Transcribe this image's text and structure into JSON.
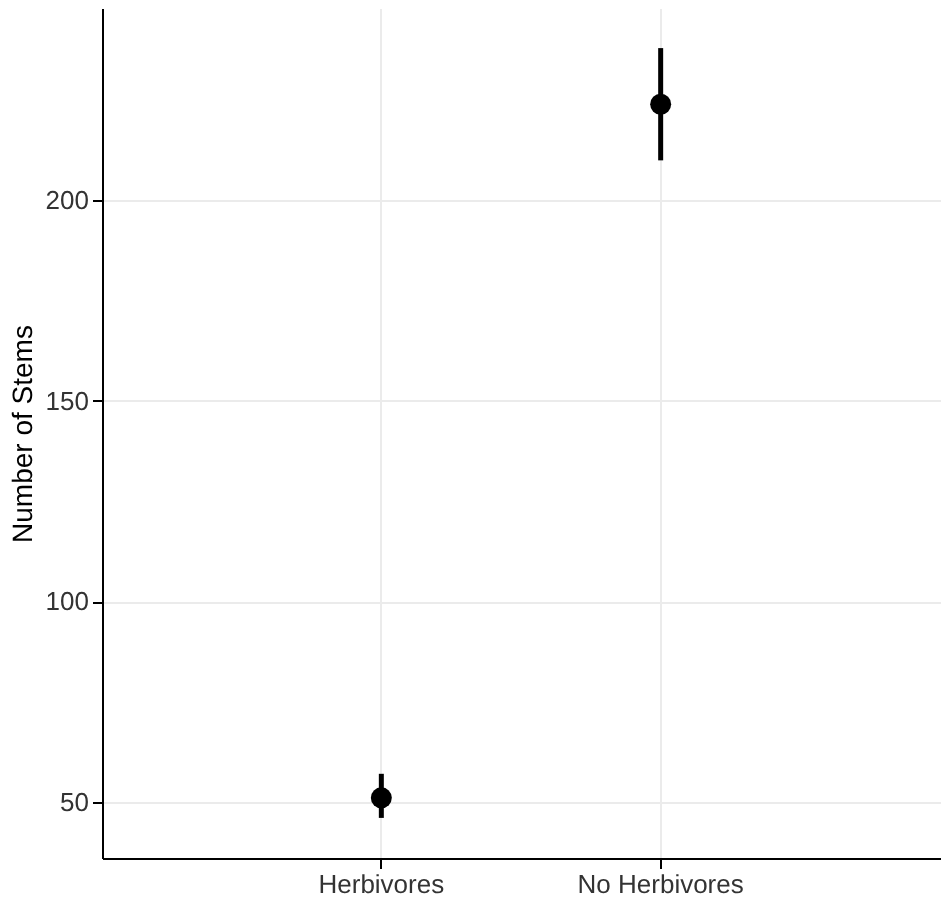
{
  "chart_data": {
    "type": "scatter",
    "ylabel": "Number of Stems",
    "categories": [
      "Herbivores",
      "No Herbivores"
    ],
    "series": [
      {
        "color": "#000000",
        "values": [
          51,
          224
        ],
        "errors": [
          [
            46,
            57
          ],
          [
            210,
            238
          ]
        ]
      }
    ],
    "ylim": [
      36,
      248
    ],
    "yticks": [
      50,
      100,
      150,
      200
    ],
    "grid": true,
    "marker": "circle"
  }
}
